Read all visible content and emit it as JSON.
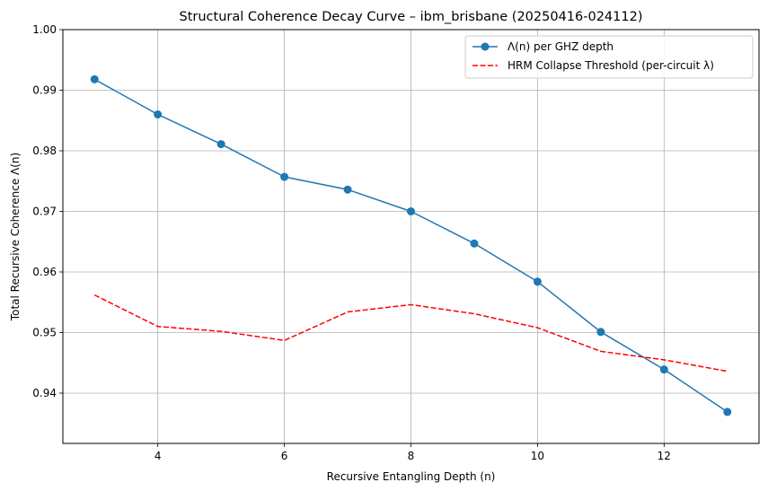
{
  "chart_data": {
    "type": "line",
    "title": "Structural Coherence Decay Curve – ibm_brisbane (20250416-024112)",
    "xlabel": "Recursive Entangling Depth (n)",
    "ylabel": "Total Recursive Coherence Λ(n)",
    "xlim": [
      2.5,
      13.5
    ],
    "ylim": [
      0.9317,
      1.0
    ],
    "xticks": [
      4,
      6,
      8,
      10,
      12
    ],
    "yticks": [
      0.94,
      0.95,
      0.96,
      0.97,
      0.98,
      0.99,
      1.0
    ],
    "ytick_labels": [
      "0.94",
      "0.95",
      "0.96",
      "0.97",
      "0.98",
      "0.99",
      "1.00"
    ],
    "grid": true,
    "legend_position": "top-right",
    "series": [
      {
        "name": "Λ(n) per GHZ depth",
        "color": "#1f77b4",
        "style": "solid",
        "marker": "circle",
        "x": [
          3,
          4,
          5,
          6,
          7,
          8,
          9,
          10,
          11,
          12,
          13
        ],
        "y": [
          0.9918,
          0.986,
          0.9811,
          0.9757,
          0.9736,
          0.97,
          0.9647,
          0.9584,
          0.9501,
          0.9439,
          0.9369
        ]
      },
      {
        "name": "HRM Collapse Threshold (per-circuit λ)",
        "color": "#ff0000",
        "style": "dashed",
        "marker": "none",
        "x": [
          3,
          4,
          5,
          6,
          7,
          8,
          9,
          10,
          11,
          12,
          13
        ],
        "y": [
          0.9562,
          0.951,
          0.9502,
          0.9487,
          0.9534,
          0.9546,
          0.9531,
          0.9508,
          0.9469,
          0.9455,
          0.9436
        ]
      }
    ]
  }
}
